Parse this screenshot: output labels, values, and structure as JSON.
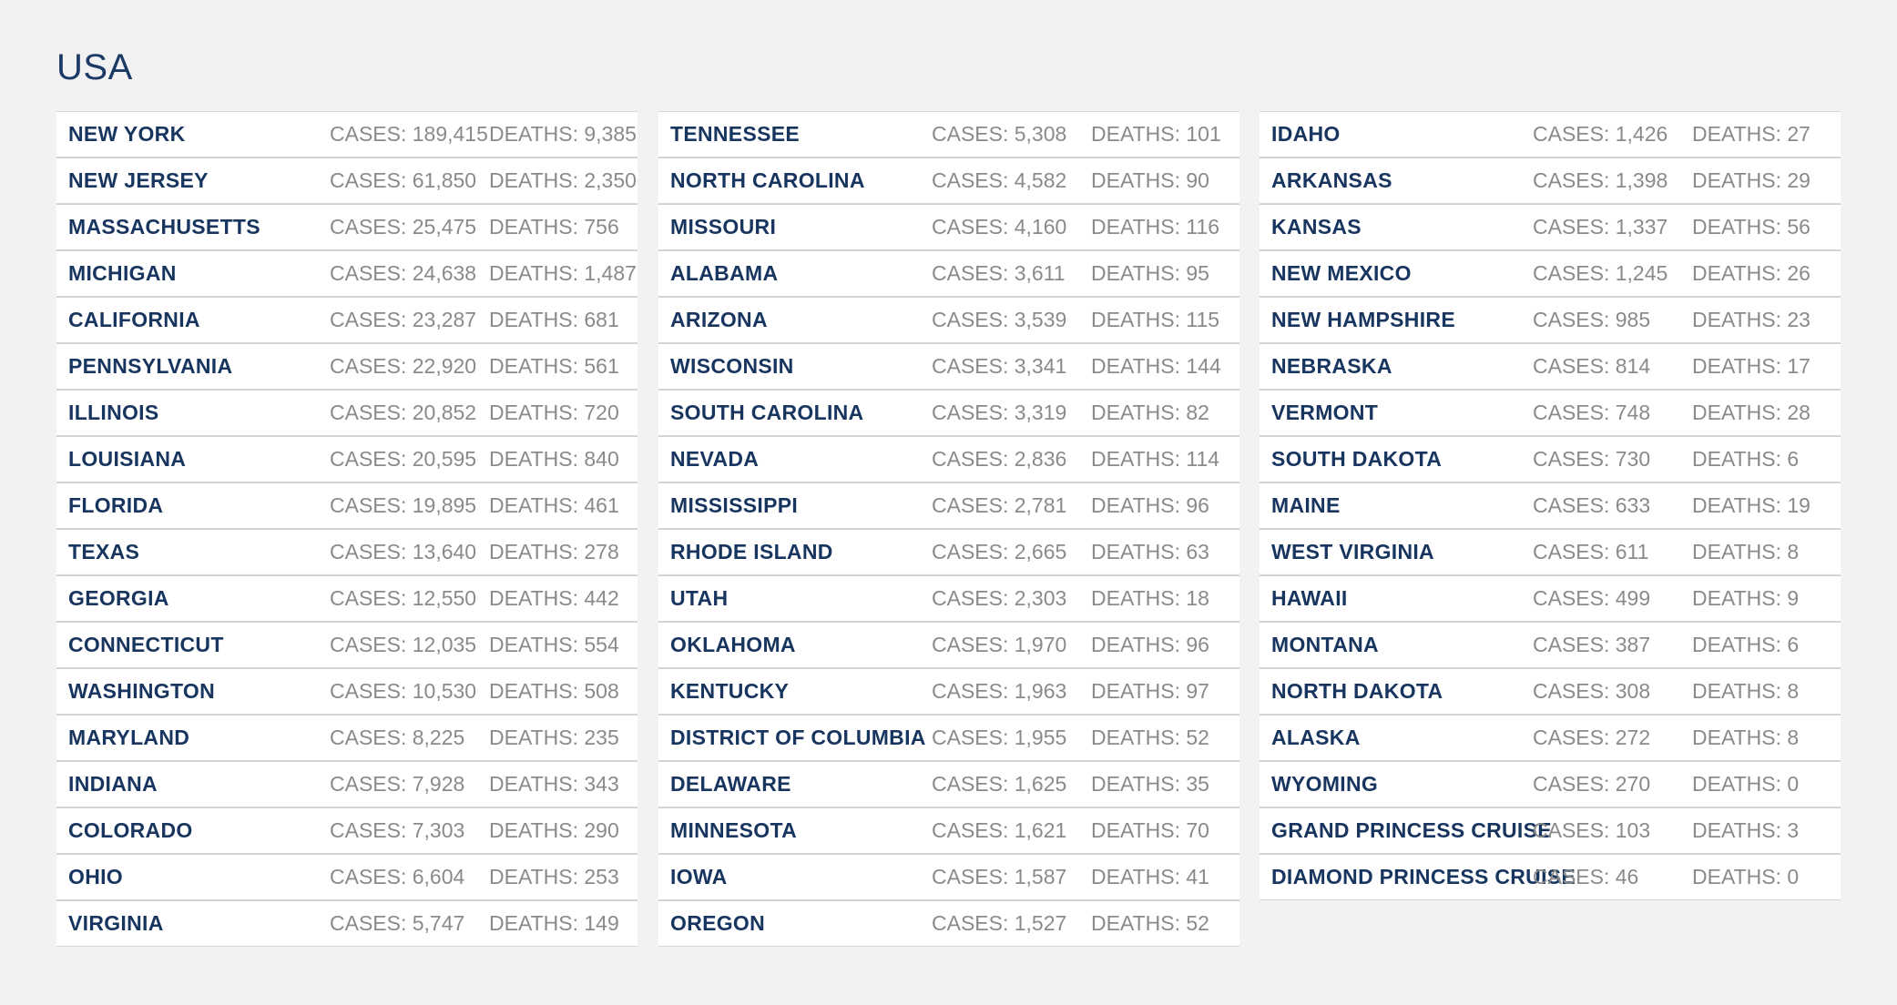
{
  "title": "USA",
  "columns": [
    [
      {
        "state": "NEW YORK",
        "cases": "CASES: 189,415",
        "deaths": "DEATHS: 9,385"
      },
      {
        "state": "NEW JERSEY",
        "cases": "CASES: 61,850",
        "deaths": "DEATHS: 2,350"
      },
      {
        "state": "MASSACHUSETTS",
        "cases": "CASES: 25,475",
        "deaths": "DEATHS: 756"
      },
      {
        "state": "MICHIGAN",
        "cases": "CASES: 24,638",
        "deaths": "DEATHS: 1,487"
      },
      {
        "state": "CALIFORNIA",
        "cases": "CASES: 23,287",
        "deaths": "DEATHS: 681"
      },
      {
        "state": "PENNSYLVANIA",
        "cases": "CASES: 22,920",
        "deaths": "DEATHS: 561"
      },
      {
        "state": "ILLINOIS",
        "cases": "CASES: 20,852",
        "deaths": "DEATHS: 720"
      },
      {
        "state": "LOUISIANA",
        "cases": "CASES: 20,595",
        "deaths": "DEATHS: 840"
      },
      {
        "state": "FLORIDA",
        "cases": "CASES: 19,895",
        "deaths": "DEATHS: 461"
      },
      {
        "state": "TEXAS",
        "cases": "CASES: 13,640",
        "deaths": "DEATHS: 278"
      },
      {
        "state": "GEORGIA",
        "cases": "CASES: 12,550",
        "deaths": "DEATHS: 442"
      },
      {
        "state": "CONNECTICUT",
        "cases": "CASES: 12,035",
        "deaths": "DEATHS: 554"
      },
      {
        "state": "WASHINGTON",
        "cases": "CASES: 10,530",
        "deaths": "DEATHS: 508"
      },
      {
        "state": "MARYLAND",
        "cases": "CASES: 8,225",
        "deaths": "DEATHS: 235"
      },
      {
        "state": "INDIANA",
        "cases": "CASES: 7,928",
        "deaths": "DEATHS: 343"
      },
      {
        "state": "COLORADO",
        "cases": "CASES: 7,303",
        "deaths": "DEATHS: 290"
      },
      {
        "state": "OHIO",
        "cases": "CASES: 6,604",
        "deaths": "DEATHS: 253"
      },
      {
        "state": "VIRGINIA",
        "cases": "CASES: 5,747",
        "deaths": "DEATHS: 149"
      }
    ],
    [
      {
        "state": "TENNESSEE",
        "cases": "CASES: 5,308",
        "deaths": "DEATHS: 101"
      },
      {
        "state": "NORTH CAROLINA",
        "cases": "CASES: 4,582",
        "deaths": "DEATHS: 90"
      },
      {
        "state": "MISSOURI",
        "cases": "CASES: 4,160",
        "deaths": "DEATHS: 116"
      },
      {
        "state": "ALABAMA",
        "cases": "CASES: 3,611",
        "deaths": "DEATHS: 95"
      },
      {
        "state": "ARIZONA",
        "cases": "CASES: 3,539",
        "deaths": "DEATHS: 115"
      },
      {
        "state": "WISCONSIN",
        "cases": "CASES: 3,341",
        "deaths": "DEATHS: 144"
      },
      {
        "state": "SOUTH CAROLINA",
        "cases": "CASES: 3,319",
        "deaths": "DEATHS: 82"
      },
      {
        "state": "NEVADA",
        "cases": "CASES: 2,836",
        "deaths": "DEATHS: 114"
      },
      {
        "state": "MISSISSIPPI",
        "cases": "CASES: 2,781",
        "deaths": "DEATHS: 96"
      },
      {
        "state": "RHODE ISLAND",
        "cases": "CASES: 2,665",
        "deaths": "DEATHS: 63"
      },
      {
        "state": "UTAH",
        "cases": "CASES: 2,303",
        "deaths": "DEATHS: 18"
      },
      {
        "state": "OKLAHOMA",
        "cases": "CASES: 1,970",
        "deaths": "DEATHS: 96"
      },
      {
        "state": "KENTUCKY",
        "cases": "CASES: 1,963",
        "deaths": "DEATHS: 97"
      },
      {
        "state": "DISTRICT OF COLUMBIA",
        "cases": "CASES: 1,955",
        "deaths": "DEATHS: 52"
      },
      {
        "state": "DELAWARE",
        "cases": "CASES: 1,625",
        "deaths": "DEATHS: 35"
      },
      {
        "state": "MINNESOTA",
        "cases": "CASES: 1,621",
        "deaths": "DEATHS: 70"
      },
      {
        "state": "IOWA",
        "cases": "CASES: 1,587",
        "deaths": "DEATHS: 41"
      },
      {
        "state": "OREGON",
        "cases": "CASES: 1,527",
        "deaths": "DEATHS: 52"
      }
    ],
    [
      {
        "state": "IDAHO",
        "cases": "CASES: 1,426",
        "deaths": "DEATHS: 27"
      },
      {
        "state": "ARKANSAS",
        "cases": "CASES: 1,398",
        "deaths": "DEATHS: 29"
      },
      {
        "state": "KANSAS",
        "cases": "CASES: 1,337",
        "deaths": "DEATHS: 56"
      },
      {
        "state": "NEW MEXICO",
        "cases": "CASES: 1,245",
        "deaths": "DEATHS: 26"
      },
      {
        "state": "NEW HAMPSHIRE",
        "cases": "CASES: 985",
        "deaths": "DEATHS: 23"
      },
      {
        "state": "NEBRASKA",
        "cases": "CASES: 814",
        "deaths": "DEATHS: 17"
      },
      {
        "state": "VERMONT",
        "cases": "CASES: 748",
        "deaths": "DEATHS: 28"
      },
      {
        "state": "SOUTH DAKOTA",
        "cases": "CASES: 730",
        "deaths": "DEATHS: 6"
      },
      {
        "state": "MAINE",
        "cases": "CASES: 633",
        "deaths": "DEATHS: 19"
      },
      {
        "state": "WEST VIRGINIA",
        "cases": "CASES: 611",
        "deaths": "DEATHS: 8"
      },
      {
        "state": "HAWAII",
        "cases": "CASES: 499",
        "deaths": "DEATHS: 9"
      },
      {
        "state": "MONTANA",
        "cases": "CASES: 387",
        "deaths": "DEATHS: 6"
      },
      {
        "state": "NORTH DAKOTA",
        "cases": "CASES: 308",
        "deaths": "DEATHS: 8"
      },
      {
        "state": "ALASKA",
        "cases": "CASES: 272",
        "deaths": "DEATHS: 8"
      },
      {
        "state": "WYOMING",
        "cases": "CASES: 270",
        "deaths": "DEATHS: 0"
      },
      {
        "state": "GRAND PRINCESS CRUISE",
        "cases": "CASES: 103",
        "deaths": "DEATHS: 3"
      },
      {
        "state": "DIAMOND PRINCESS CRUISE",
        "cases": "CASES: 46",
        "deaths": "DEATHS: 0"
      }
    ]
  ]
}
